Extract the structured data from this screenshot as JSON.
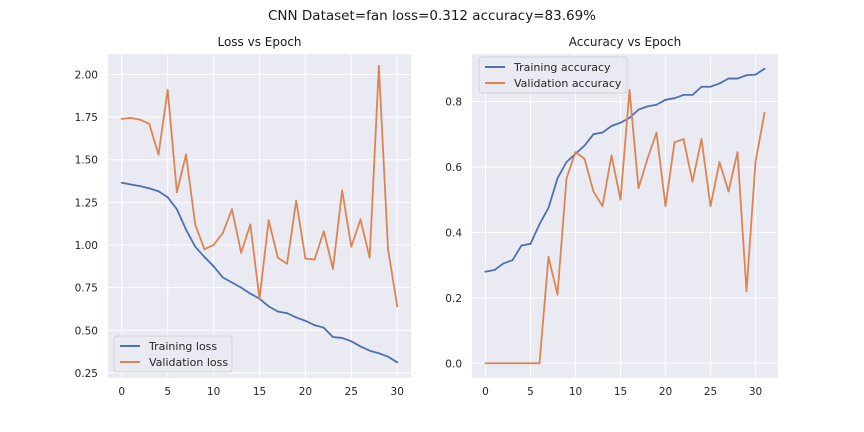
{
  "figure": {
    "suptitle": "CNN Dataset=fan loss=0.312 accuracy=83.69%"
  },
  "colors": {
    "training": "#4c72b0",
    "validation": "#dd8452",
    "axes_bg": "#eaeaf2",
    "grid": "#ffffff"
  },
  "chart_data": [
    {
      "type": "line",
      "title": "Loss vs Epoch",
      "xlabel": "",
      "ylabel": "",
      "grid": true,
      "legend_position": "lower-left",
      "xlim": [
        -1.5,
        31.5
      ],
      "ylim": [
        0.22,
        2.12
      ],
      "xticks": [
        0,
        5,
        10,
        15,
        20,
        25,
        30
      ],
      "yticks": [
        0.25,
        0.5,
        0.75,
        1.0,
        1.25,
        1.5,
        1.75,
        2.0
      ],
      "ytick_labels": [
        "0.25",
        "0.50",
        "0.75",
        "1.00",
        "1.25",
        "1.50",
        "1.75",
        "2.00"
      ],
      "x": [
        0,
        1,
        2,
        3,
        4,
        5,
        6,
        7,
        8,
        9,
        10,
        11,
        12,
        13,
        14,
        15,
        16,
        17,
        18,
        19,
        20,
        21,
        22,
        23,
        24,
        25,
        26,
        27,
        28,
        29,
        30
      ],
      "series": [
        {
          "name": "Training loss",
          "color": "#4c72b0",
          "values": [
            1.365,
            1.355,
            1.345,
            1.332,
            1.315,
            1.28,
            1.21,
            1.09,
            0.99,
            0.93,
            0.875,
            0.81,
            0.78,
            0.75,
            0.715,
            0.685,
            0.64,
            0.61,
            0.6,
            0.575,
            0.555,
            0.53,
            0.515,
            0.46,
            0.455,
            0.435,
            0.405,
            0.38,
            0.365,
            0.345,
            0.312
          ]
        },
        {
          "name": "Validation loss",
          "color": "#dd8452",
          "values": [
            1.74,
            1.745,
            1.735,
            1.71,
            1.53,
            1.91,
            1.31,
            1.53,
            1.12,
            0.975,
            1.0,
            1.07,
            1.21,
            0.955,
            1.12,
            0.685,
            1.145,
            0.925,
            0.89,
            1.26,
            0.92,
            0.915,
            1.08,
            0.86,
            1.32,
            0.99,
            1.15,
            0.925,
            2.05,
            0.975,
            0.64
          ]
        }
      ]
    },
    {
      "type": "line",
      "title": "Accuracy vs Epoch",
      "xlabel": "",
      "ylabel": "",
      "grid": true,
      "legend_position": "upper-left",
      "xlim": [
        -1.5,
        32.5
      ],
      "ylim": [
        -0.045,
        0.945
      ],
      "xticks": [
        0,
        5,
        10,
        15,
        20,
        25,
        30
      ],
      "yticks": [
        0.0,
        0.2,
        0.4,
        0.6,
        0.8
      ],
      "ytick_labels": [
        "0.0",
        "0.2",
        "0.4",
        "0.6",
        "0.8"
      ],
      "x": [
        0,
        1,
        2,
        3,
        4,
        5,
        6,
        7,
        8,
        9,
        10,
        11,
        12,
        13,
        14,
        15,
        16,
        17,
        18,
        19,
        20,
        21,
        22,
        23,
        24,
        25,
        26,
        27,
        28,
        29,
        30,
        31
      ],
      "series": [
        {
          "name": "Training accuracy",
          "color": "#4c72b0",
          "values": [
            0.28,
            0.285,
            0.305,
            0.315,
            0.36,
            0.365,
            0.425,
            0.475,
            0.565,
            0.615,
            0.64,
            0.665,
            0.7,
            0.705,
            0.725,
            0.735,
            0.75,
            0.775,
            0.785,
            0.79,
            0.805,
            0.81,
            0.82,
            0.82,
            0.845,
            0.845,
            0.855,
            0.87,
            0.87,
            0.88,
            0.882,
            0.9
          ]
        },
        {
          "name": "Validation accuracy",
          "color": "#dd8452",
          "values": [
            0.0,
            0.0,
            0.0,
            0.0,
            0.0,
            0.0,
            0.0,
            0.325,
            0.21,
            0.565,
            0.645,
            0.625,
            0.525,
            0.48,
            0.635,
            0.5,
            0.835,
            0.535,
            0.625,
            0.705,
            0.48,
            0.675,
            0.685,
            0.555,
            0.685,
            0.48,
            0.615,
            0.525,
            0.645,
            0.22,
            0.615,
            0.765
          ]
        }
      ]
    }
  ]
}
